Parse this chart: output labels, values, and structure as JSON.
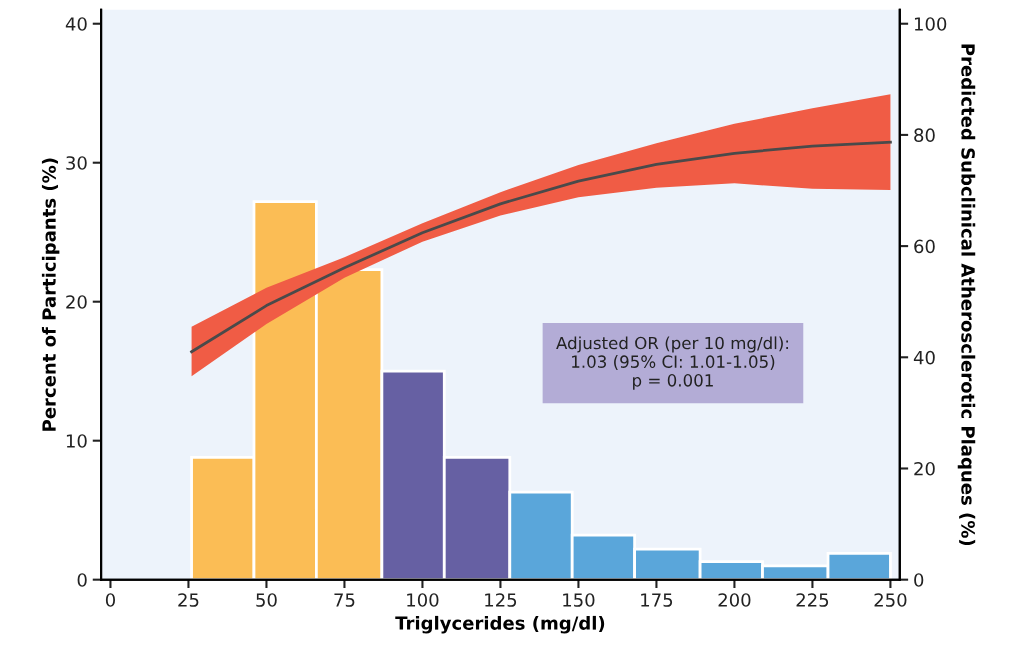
{
  "chart_data": {
    "type": "histogram",
    "xlabel": "Triglycerides (mg/dl)",
    "ylabel": "Percent of Participants (%)",
    "y2label": "Predicted Subclinical Atherosclerotic Plaques (%)",
    "bins": [
      26,
      46,
      66,
      87,
      107,
      128,
      148,
      168,
      189,
      209,
      230,
      250
    ],
    "values": [
      8.8,
      27.2,
      22.3,
      15.0,
      8.8,
      6.3,
      3.2,
      2.2,
      1.3,
      1.0,
      1.9
    ],
    "colors": [
      "#fbbd55",
      "#fbbd55",
      "#fbbd55",
      "#6660a3",
      "#6660a3",
      "#5aa6da",
      "#5aa6da",
      "#5aa6da",
      "#5aa6da",
      "#5aa6da",
      "#5aa6da"
    ],
    "series": [
      {
        "type": "line",
        "axis": "y2",
        "color": "#4a4a4a",
        "x": [
          26,
          50,
          75,
          100,
          125,
          150,
          175,
          200,
          225,
          250
        ],
        "values": [
          41.0,
          49.3,
          56.1,
          62.4,
          67.6,
          71.7,
          74.7,
          76.7,
          78.0,
          78.7
        ],
        "lower": [
          36.6,
          46.0,
          54.3,
          60.8,
          65.5,
          68.8,
          70.5,
          71.3,
          70.3,
          70.1
        ],
        "upper": [
          45.5,
          52.5,
          58.0,
          64.1,
          69.7,
          74.6,
          78.5,
          82.0,
          84.8,
          87.3
        ]
      }
    ],
    "xlim": [
      -3,
      253
    ],
    "xticks": [
      0,
      25,
      50,
      75,
      100,
      125,
      150,
      175,
      200,
      225,
      250
    ],
    "ylim": [
      0,
      41
    ],
    "yticks": [
      0,
      10,
      20,
      30,
      40
    ],
    "y2lim": [
      0,
      102.5
    ],
    "y2ticks": [
      0,
      20,
      40,
      60,
      80,
      100
    ],
    "annotations": [
      "Adjusted OR (per 10 mg/dl):\n1.03 (95% CI: 1.01-1.05)\np = 0.001"
    ],
    "grid": false,
    "legend": false
  }
}
